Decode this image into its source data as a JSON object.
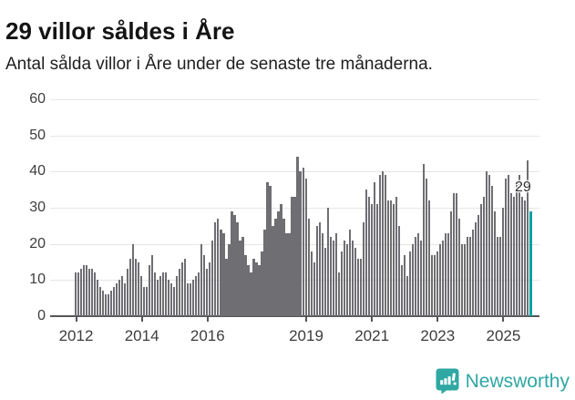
{
  "header": {
    "title": "29 villor såldes i Åre",
    "subtitle": "Antal sålda villor i Åre under de senaste tre månaderna."
  },
  "chart_data": {
    "type": "bar",
    "title": "29 villor såldes i Åre",
    "subtitle": "Antal sålda villor i Åre under de senaste tre månaderna.",
    "unit": "antal sålda villor (rullande 3 månader)",
    "start": "2012-01",
    "frequency": "monthly",
    "values": [
      12,
      12,
      13,
      14,
      14,
      13,
      13,
      12,
      10,
      8,
      7,
      6,
      6,
      7,
      8,
      9,
      10,
      11,
      9,
      13,
      16,
      20,
      16,
      15,
      11,
      8,
      8,
      14,
      17,
      12,
      10,
      11,
      12,
      12,
      10,
      9,
      8,
      11,
      13,
      15,
      16,
      9,
      9,
      10,
      11,
      12,
      20,
      17,
      13,
      15,
      21,
      26,
      27,
      24,
      23,
      16,
      20,
      29,
      28,
      26,
      21,
      22,
      17,
      14,
      12,
      16,
      15,
      14,
      18,
      24,
      37,
      36,
      25,
      27,
      29,
      31,
      27,
      23,
      23,
      33,
      33,
      44,
      40,
      41,
      38,
      27,
      18,
      15,
      25,
      26,
      23,
      19,
      30,
      22,
      21,
      23,
      12,
      18,
      21,
      20,
      24,
      21,
      19,
      16,
      16,
      26,
      35,
      33,
      31,
      37,
      31,
      39,
      40,
      39,
      32,
      32,
      31,
      33,
      25,
      14,
      17,
      11,
      18,
      20,
      22,
      23,
      21,
      42,
      38,
      32,
      17,
      17,
      18,
      20,
      21,
      23,
      23,
      29,
      34,
      34,
      27,
      20,
      20,
      22,
      22,
      24,
      26,
      28,
      31,
      33,
      40,
      39,
      36,
      29,
      22,
      22,
      30,
      38,
      39,
      34,
      33,
      37,
      39,
      33,
      32,
      43,
      29
    ],
    "highlight_last": true,
    "last_value": 29,
    "annotation": {
      "text": "29"
    },
    "ylim": [
      0,
      60
    ],
    "y_ticks": [
      0,
      10,
      20,
      30,
      40,
      50,
      60
    ],
    "x_tick_years": [
      2012,
      2014,
      2016,
      2019,
      2021,
      2023,
      2025
    ],
    "grid": true,
    "legend": false,
    "colors": {
      "bar": "#6e6e73",
      "highlight": "#00a2a2",
      "grid": "#e6e6e6",
      "axis": "#555559",
      "tick_label": "#3d3d3d"
    }
  },
  "footer": {
    "brand": "Newsworthy",
    "logo_icon": "newsworthy-speech-bubble-chart-icon",
    "brand_color": "#2fa7a3"
  }
}
